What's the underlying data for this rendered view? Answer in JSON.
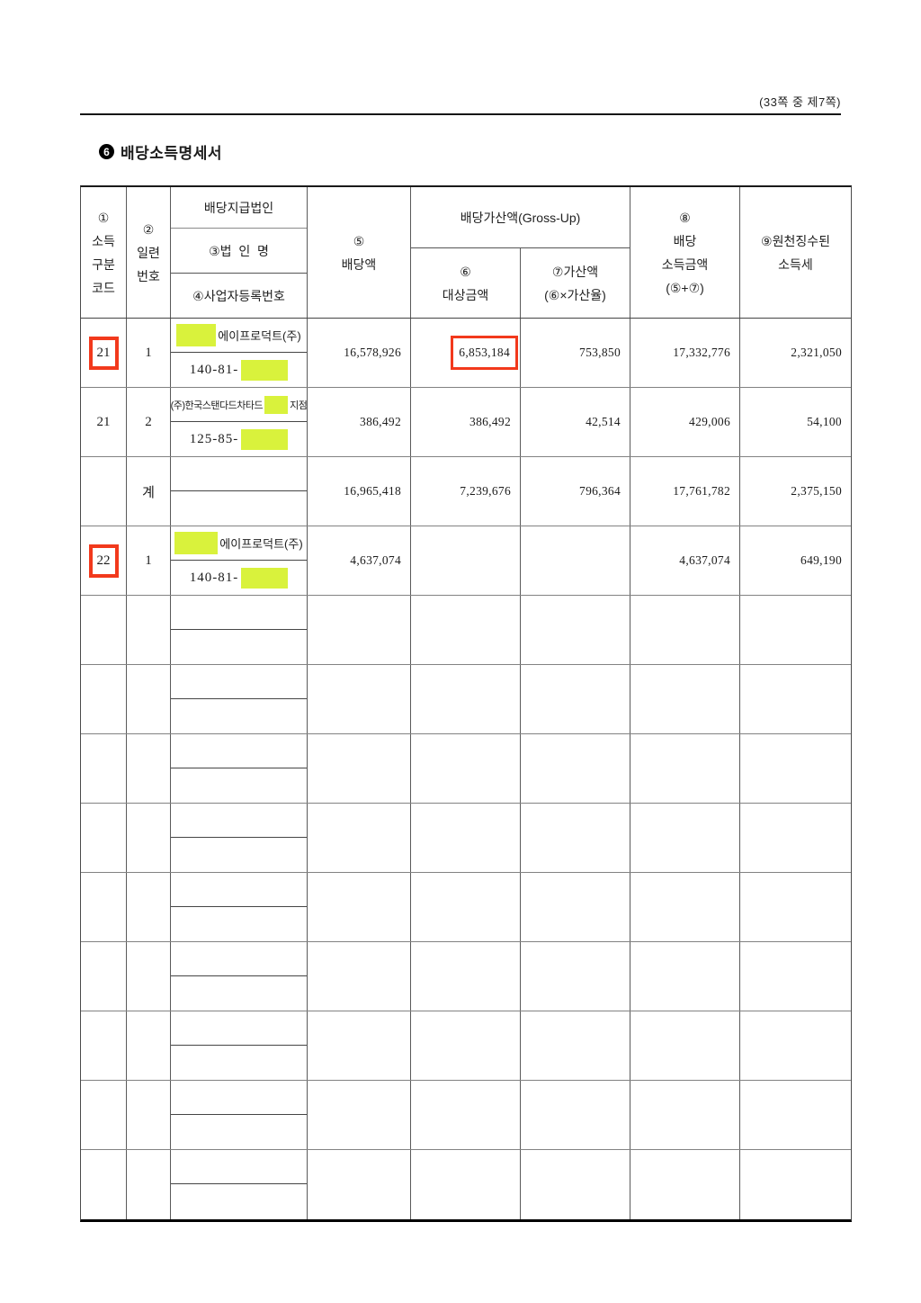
{
  "page": {
    "page_indicator": "(33쪽 중 제7쪽)",
    "section_number": "6",
    "section_title": "배당소득명세서"
  },
  "table": {
    "header": {
      "income_code": "①\n소득\n구분\n코드",
      "serial_no": "②\n일련\n번호",
      "corp_group": "배당지급법인",
      "corp_name": "③법  인  명",
      "corp_reg_no": "④사업자등록번호",
      "dividend": "⑤\n배당액",
      "grossup_group": "배당가산액(Gross-Up)",
      "grossup_base": "⑥\n대상금액",
      "grossup_added": "⑦가산액\n(⑥×가산율)",
      "dividend_income": "⑧\n배당\n소득금액\n(⑤+⑦)",
      "withheld_tax": "⑨원천징수된\n소득세"
    },
    "rows": [
      {
        "income_code": "21",
        "serial_no": "1",
        "corp_name": "에이프로덕트(주)",
        "corp_reg_prefix": "140-81-",
        "dividend": "16,578,926",
        "grossup_base": "6,853,184",
        "grossup_added": "753,850",
        "dividend_income": "17,332,776",
        "withheld_tax": "2,321,050"
      },
      {
        "income_code": "21",
        "serial_no": "2",
        "corp_name_prefix": "(주)한국스탠다드차타드",
        "corp_name_suffix": "지점",
        "corp_reg_prefix": "125-85-",
        "dividend": "386,492",
        "grossup_base": "386,492",
        "grossup_added": "42,514",
        "dividend_income": "429,006",
        "withheld_tax": "54,100"
      },
      {
        "income_code": "",
        "serial_no": "계",
        "dividend": "16,965,418",
        "grossup_base": "7,239,676",
        "grossup_added": "796,364",
        "dividend_income": "17,761,782",
        "withheld_tax": "2,375,150"
      },
      {
        "income_code": "22",
        "serial_no": "1",
        "corp_name": "에이프로덕트(주)",
        "corp_reg_prefix": "140-81-",
        "dividend": "4,637,074",
        "grossup_base": "",
        "grossup_added": "",
        "dividend_income": "4,637,074",
        "withheld_tax": "649,190"
      }
    ],
    "empty_row_count": 9,
    "colors": {
      "redaction_highlight": "#d9f23c",
      "emphasis_box": "#f2391c"
    }
  }
}
